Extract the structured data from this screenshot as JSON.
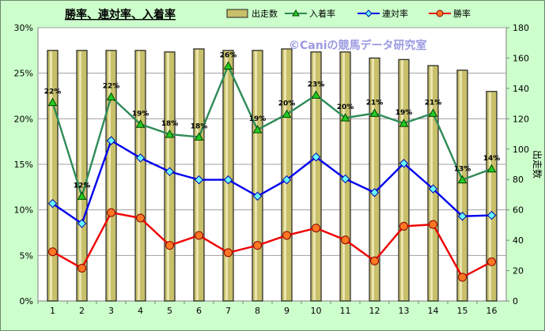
{
  "chart_data": {
    "type": "bar+line",
    "title": "勝率、連対率、入着率",
    "watermark": "©Caniの競馬データ研究室",
    "categories": [
      "1",
      "2",
      "3",
      "4",
      "5",
      "6",
      "7",
      "8",
      "9",
      "10",
      "11",
      "12",
      "13",
      "14",
      "15",
      "16"
    ],
    "y_left": {
      "min": 0,
      "max": 30,
      "step": 5,
      "ticks": [
        "0%",
        "5%",
        "10%",
        "15%",
        "20%",
        "25%",
        "30%"
      ]
    },
    "y_right": {
      "label": "出走数",
      "min": 0,
      "max": 180,
      "step": 20,
      "ticks": [
        "0",
        "20",
        "40",
        "60",
        "80",
        "100",
        "120",
        "140",
        "160",
        "180"
      ]
    },
    "bar_series": {
      "name": "出走数",
      "color": "#c8c06a",
      "values": [
        165,
        165,
        165,
        165,
        164,
        166,
        165,
        165,
        166,
        164,
        164,
        160,
        159,
        155,
        152,
        138
      ]
    },
    "series": [
      {
        "name": "入着率",
        "color": "#2e8b57",
        "marker": "triangle",
        "marker_color": "#22cc22",
        "values": [
          21.8,
          11.5,
          22.4,
          19.4,
          18.3,
          18.0,
          25.8,
          18.8,
          20.5,
          22.6,
          20.1,
          20.6,
          19.5,
          20.6,
          13.3,
          14.5
        ],
        "labels": [
          "22%",
          "12%",
          "22%",
          "19%",
          "18%",
          "18%",
          "26%",
          "19%",
          "20%",
          "23%",
          "20%",
          "21%",
          "19%",
          "21%",
          "13%",
          "14%"
        ]
      },
      {
        "name": "連対率",
        "color": "#0000ee",
        "marker": "diamond",
        "marker_color": "#66ffff",
        "values": [
          10.7,
          8.5,
          17.6,
          15.7,
          14.2,
          13.3,
          13.3,
          11.5,
          13.3,
          15.8,
          13.4,
          11.9,
          15.1,
          12.3,
          9.3,
          9.4
        ]
      },
      {
        "name": "勝率",
        "color": "#ee0000",
        "marker": "circle",
        "marker_color": "#ff7722",
        "values": [
          5.4,
          3.6,
          9.7,
          9.1,
          6.1,
          7.2,
          5.3,
          6.1,
          7.2,
          8.0,
          6.7,
          4.4,
          8.2,
          8.4,
          2.6,
          4.3
        ]
      }
    ],
    "legend": [
      "出走数",
      "入着率",
      "連対率",
      "勝率"
    ],
    "grid": true
  }
}
